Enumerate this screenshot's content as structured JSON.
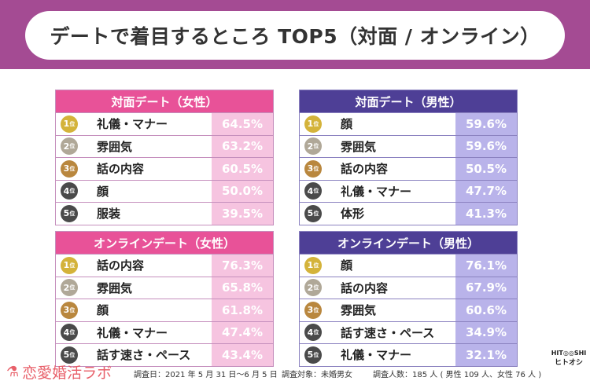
{
  "title": "デートで着目するところ TOP5（対面 / オンライン）",
  "colors": {
    "band": "#a44b93",
    "female_header": "#e85298",
    "male_header": "#4e3f96",
    "female_pct_bg": "#f6c4e0",
    "male_pct_bg": "#b9b3ea",
    "rank1": "#d4b33a",
    "rank2": "#b0a898",
    "rank3": "#b9873e",
    "rank45": "#4a4a4a"
  },
  "rank_suffix": "位",
  "tables": [
    {
      "title": "対面デート（女性）",
      "rows": [
        {
          "rank": "1",
          "item": "礼儀・マナー",
          "pct": "64.5%"
        },
        {
          "rank": "2",
          "item": "雰囲気",
          "pct": "63.2%"
        },
        {
          "rank": "3",
          "item": "話の内容",
          "pct": "60.5%"
        },
        {
          "rank": "4",
          "item": "顔",
          "pct": "50.0%"
        },
        {
          "rank": "5",
          "item": "服装",
          "pct": "39.5%"
        }
      ]
    },
    {
      "title": "対面デート（男性）",
      "rows": [
        {
          "rank": "1",
          "item": "顔",
          "pct": "59.6%"
        },
        {
          "rank": "2",
          "item": "雰囲気",
          "pct": "59.6%"
        },
        {
          "rank": "3",
          "item": "話の内容",
          "pct": "50.5%"
        },
        {
          "rank": "4",
          "item": "礼儀・マナー",
          "pct": "47.7%"
        },
        {
          "rank": "5",
          "item": "体形",
          "pct": "41.3%"
        }
      ]
    },
    {
      "title": "オンラインデート（女性）",
      "rows": [
        {
          "rank": "1",
          "item": "話の内容",
          "pct": "76.3%"
        },
        {
          "rank": "2",
          "item": "雰囲気",
          "pct": "65.8%"
        },
        {
          "rank": "3",
          "item": "顔",
          "pct": "61.8%"
        },
        {
          "rank": "4",
          "item": "礼儀・マナー",
          "pct": "47.4%"
        },
        {
          "rank": "5",
          "item": "話す速さ・ペース",
          "pct": "43.4%"
        }
      ]
    },
    {
      "title": "オンラインデート（男性）",
      "rows": [
        {
          "rank": "1",
          "item": "顔",
          "pct": "76.1%"
        },
        {
          "rank": "2",
          "item": "話の内容",
          "pct": "67.9%"
        },
        {
          "rank": "3",
          "item": "雰囲気",
          "pct": "60.6%"
        },
        {
          "rank": "4",
          "item": "話す速さ・ペース",
          "pct": "34.9%"
        },
        {
          "rank": "5",
          "item": "礼儀・マナー",
          "pct": "32.1%"
        }
      ]
    }
  ],
  "footer": {
    "logo": "恋愛婚活ラボ",
    "date": "調査日：2021 年 5 月 31 日〜6 月 5 日",
    "target": "調査対象：未婚男女",
    "count": "調査人数：185 人 ( 男性 109 人、女性 76 人 )",
    "mascot_top_left": "HIT",
    "mascot_top_right": "SHI",
    "mascot_name": "ヒトオシ"
  }
}
